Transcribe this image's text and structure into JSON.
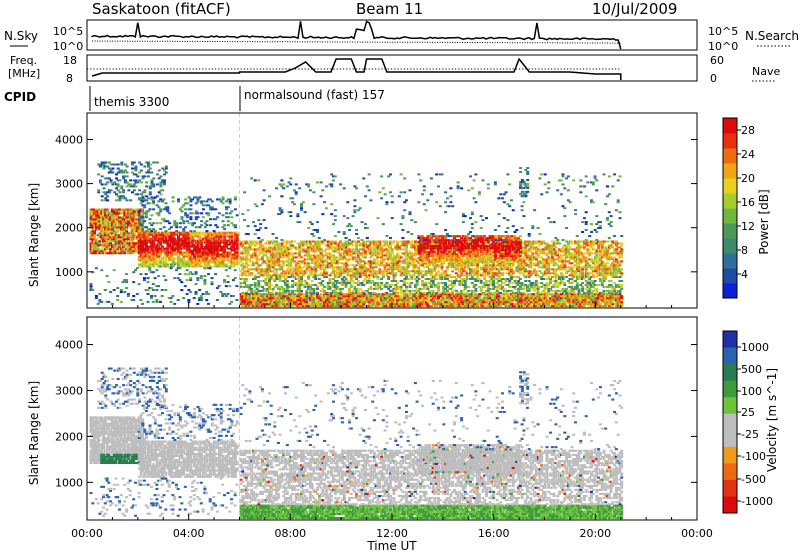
{
  "header": {
    "station": "Saskatoon (fitACF)",
    "beam": "Beam 11",
    "date": "10/Jul/2009"
  },
  "top_panels": {
    "nsky_label": "N.Sky",
    "nsky_ticks": [
      "10^5",
      "10^0"
    ],
    "nsearch_label": "N.Search",
    "nsearch_ticks": [
      "10^5",
      "10^0"
    ],
    "freq_label": "Freq.",
    "freq_unit": "[MHz]",
    "freq_ticks": [
      "18",
      "8"
    ],
    "nave_label": "Nave",
    "nave_ticks": [
      "60",
      "0"
    ],
    "cpid_label": "CPID",
    "cpid_modes": [
      {
        "name": "themis 3300",
        "start_hour": 0
      },
      {
        "name": "normalsound (fast) 157",
        "start_hour": 6.0
      }
    ]
  },
  "chart_data": [
    {
      "type": "heatmap",
      "title": "",
      "xlabel": "Time UT",
      "ylabel": "Slant Range [km]",
      "xlim": [
        0,
        24
      ],
      "ylim": [
        180,
        4600
      ],
      "x_ticks": [
        "00:00",
        "04:00",
        "08:00",
        "12:00",
        "16:00",
        "20:00",
        "00:00"
      ],
      "y_ticks": [
        1000,
        2000,
        3000,
        4000
      ],
      "colorbar": {
        "label": "Power [dB]",
        "ticks": [
          4,
          8,
          12,
          16,
          20,
          24,
          28
        ],
        "range": [
          0,
          30
        ]
      },
      "data_span_hours": [
        0.1,
        21.0
      ]
    },
    {
      "type": "heatmap",
      "title": "",
      "xlabel": "Time UT",
      "ylabel": "Slant Range [km]",
      "xlim": [
        0,
        24
      ],
      "ylim": [
        180,
        4600
      ],
      "x_ticks": [
        "00:00",
        "04:00",
        "08:00",
        "12:00",
        "16:00",
        "20:00",
        "00:00"
      ],
      "y_ticks": [
        1000,
        2000,
        3000,
        4000
      ],
      "colorbar": {
        "label": "Velocity [m s^-1]",
        "ticks": [
          "1000",
          "500",
          "100",
          "25",
          "-25",
          "-100",
          "-500",
          "-1000"
        ]
      },
      "data_span_hours": [
        0.1,
        21.0
      ]
    }
  ],
  "colors": {
    "power_scale": [
      "#0b22d8",
      "#1e4aa8",
      "#2f6f9a",
      "#3f8a6e",
      "#4c9a58",
      "#6fb83a",
      "#a8cc2a",
      "#e6d21c",
      "#f3a412",
      "#ee6b10",
      "#e83010",
      "#dc0a0a"
    ],
    "velocity_scale": [
      "#1f2fa8",
      "#2a62b0",
      "#2a7b52",
      "#3e9a3a",
      "#6cc43a",
      "#bdbdbd",
      "#bdbdbd",
      "#ee9a1a",
      "#ee6a10",
      "#e43210",
      "#dc0a0a"
    ],
    "ground_scatter": "#bdbdbd"
  }
}
